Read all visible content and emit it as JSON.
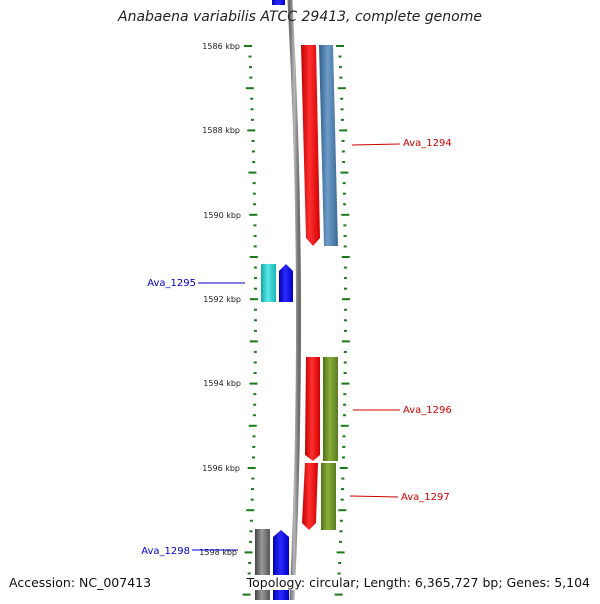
{
  "title": "Anabaena variabilis ATCC 29413, complete genome",
  "accession": "Accession: NC_007413",
  "summary": "Topology: circular; Length: 6,365,727 bp; Genes: 5,104",
  "scale": {
    "ticks": [
      {
        "label": "1586 kbp",
        "kbp": 1586
      },
      {
        "label": "1588 kbp",
        "kbp": 1588
      },
      {
        "label": "1590 kbp",
        "kbp": 1590
      },
      {
        "label": "1592 kbp",
        "kbp": 1592
      },
      {
        "label": "1594 kbp",
        "kbp": 1594
      },
      {
        "label": "1596 kbp",
        "kbp": 1596
      },
      {
        "label": "1598 kbp",
        "kbp": 1598
      }
    ]
  },
  "genes": [
    {
      "label": "Ava_1294",
      "strand": "forward",
      "label_color": "#cc0000"
    },
    {
      "label": "Ava_1295",
      "strand": "reverse",
      "label_color": "#0000cc"
    },
    {
      "label": "Ava_1296",
      "strand": "forward",
      "label_color": "#cc0000"
    },
    {
      "label": "Ava_1297",
      "strand": "forward",
      "label_color": "#cc0000"
    },
    {
      "label": "Ava_1298",
      "strand": "reverse",
      "label_color": "#0000cc"
    }
  ],
  "colors": {
    "backbone": "#8a8a8a",
    "tick": "#1a7a1a",
    "forward_cds": "#ff0000",
    "reverse_cds": "#0000ff",
    "cog_blue": "#4a7fb0",
    "cog_cyan": "#22c8c8",
    "cog_olive": "#6b8a22",
    "cog_gray": "#666666"
  }
}
